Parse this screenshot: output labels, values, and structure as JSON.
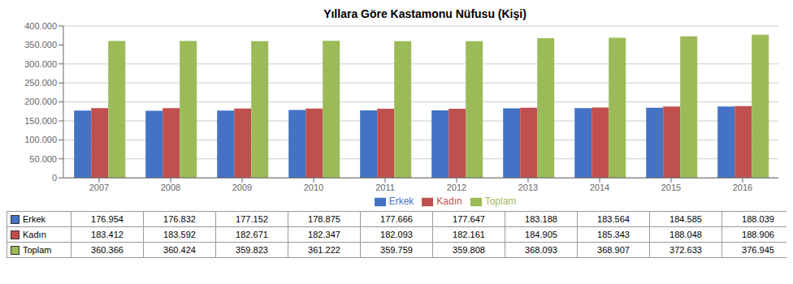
{
  "chart_data": {
    "type": "bar",
    "title": "Yıllara Göre Kastamonu Nüfusu (Kişi)",
    "categories": [
      "2007",
      "2008",
      "2009",
      "2010",
      "2011",
      "2012",
      "2013",
      "2014",
      "2015",
      "2016"
    ],
    "series": [
      {
        "name": "Erkek",
        "color": "#4472C4",
        "values": [
          176954,
          176832,
          177152,
          178875,
          177666,
          177647,
          183188,
          183564,
          184585,
          188039
        ],
        "value_labels": [
          "176.954",
          "176.832",
          "177.152",
          "178.875",
          "177.666",
          "177.647",
          "183.188",
          "183.564",
          "184.585",
          "188.039"
        ]
      },
      {
        "name": "Kadın",
        "color": "#C0504D",
        "values": [
          183412,
          183592,
          182671,
          182347,
          182093,
          182161,
          184905,
          185343,
          188048,
          188906
        ],
        "value_labels": [
          "183.412",
          "183.592",
          "182.671",
          "182.347",
          "182.093",
          "182.161",
          "184.905",
          "185.343",
          "188.048",
          "188.906"
        ]
      },
      {
        "name": "Toplam",
        "color": "#9BBB59",
        "values": [
          360366,
          360424,
          359823,
          361222,
          359759,
          359808,
          368093,
          368907,
          372633,
          376945
        ],
        "value_labels": [
          "360.366",
          "360.424",
          "359.823",
          "361.222",
          "359.759",
          "359.808",
          "368.093",
          "368.907",
          "372.633",
          "376.945"
        ]
      }
    ],
    "ylim": [
      0,
      400000
    ],
    "yticks": [
      0,
      {
        "value": 50000,
        "label": "50.000"
      },
      {
        "value": 100000,
        "label": "100.000"
      },
      {
        "value": 150000,
        "label": "150.000"
      },
      {
        "value": 200000,
        "label": "200.000"
      },
      {
        "value": 250000,
        "label": "250.000"
      },
      {
        "value": 300000,
        "label": "300.000"
      },
      {
        "value": 350000,
        "label": "350.000"
      },
      {
        "value": 400000,
        "label": "400.000"
      }
    ],
    "grid": true,
    "legend": "bottom"
  }
}
